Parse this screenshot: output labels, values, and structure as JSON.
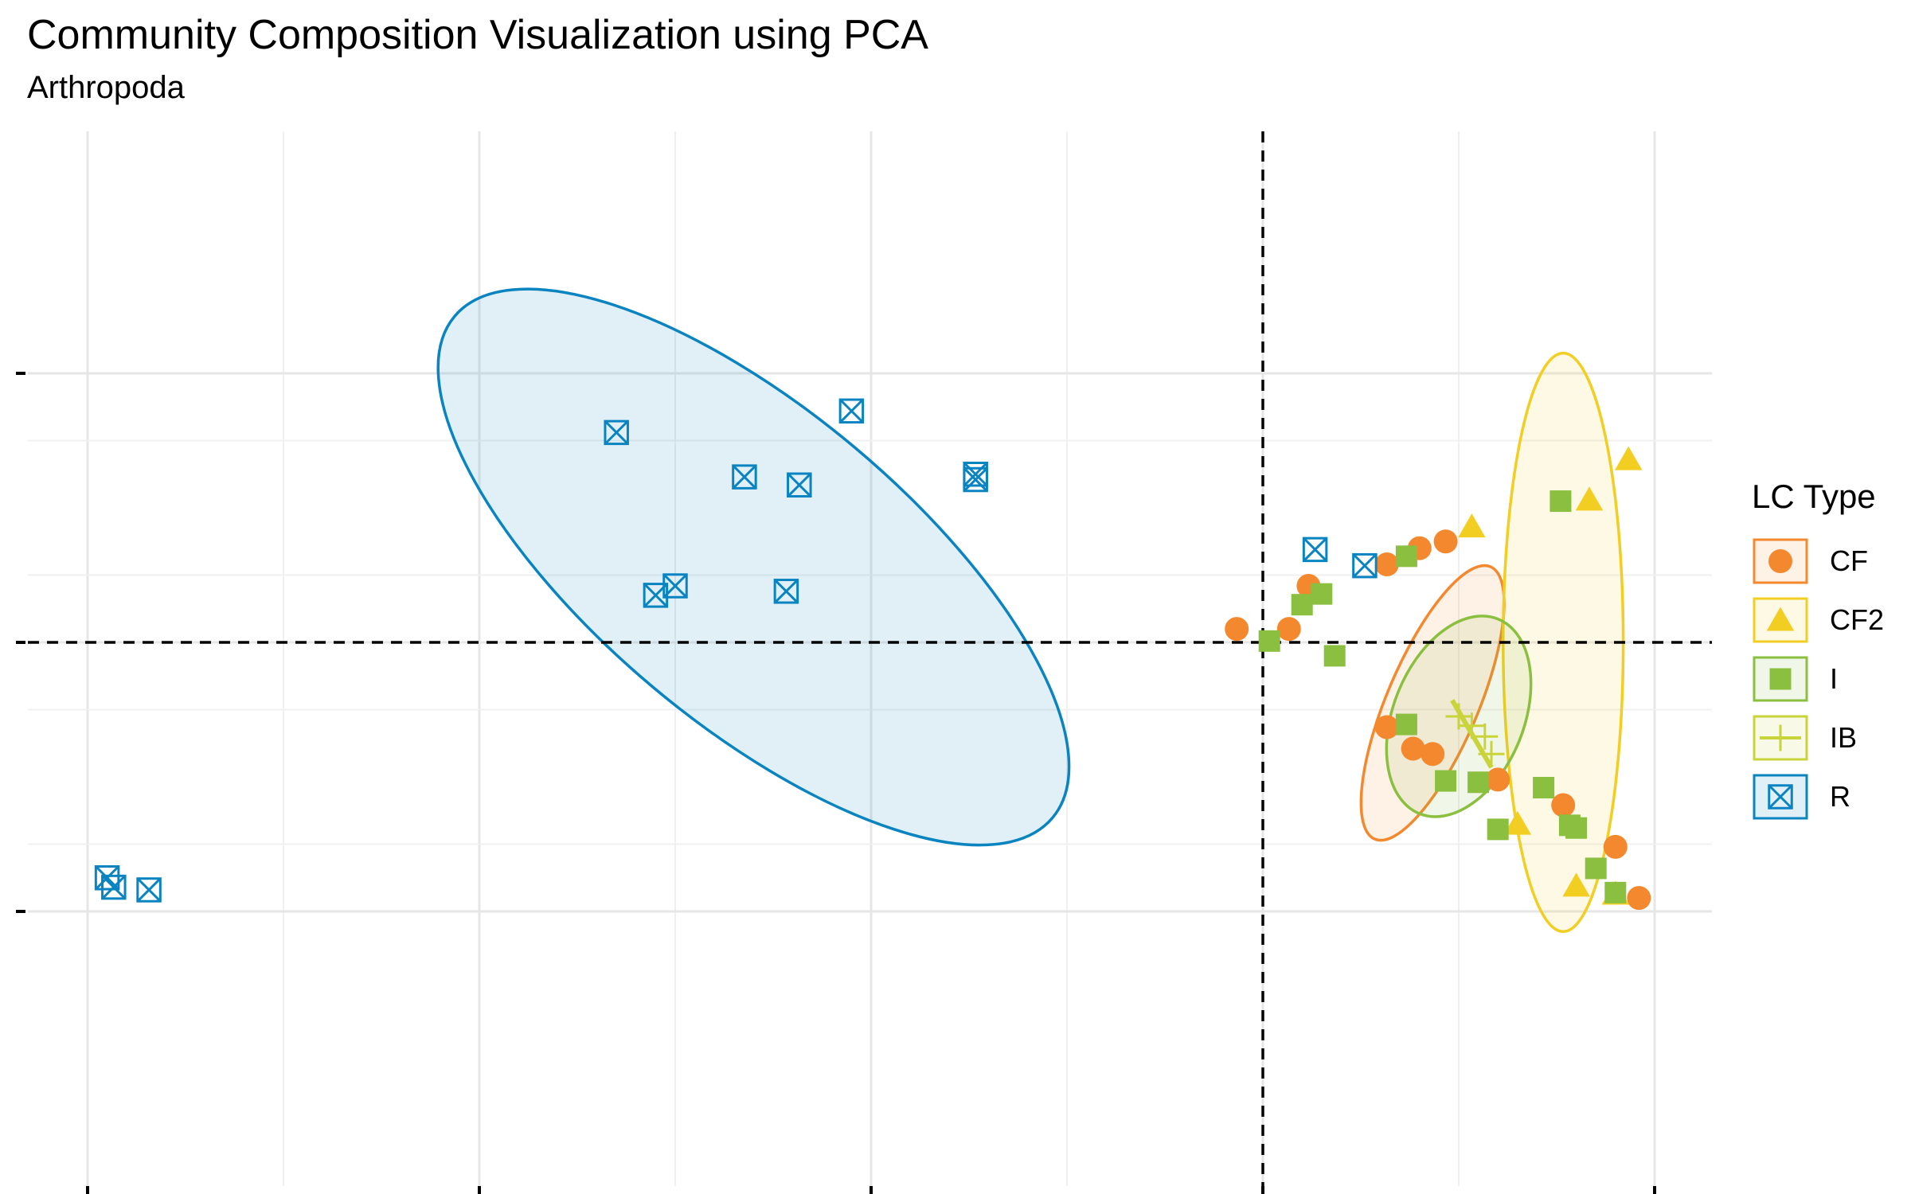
{
  "title": "Community Composition Visualization using PCA",
  "subtitle": "Arthropoda",
  "legend": {
    "title": "LC Type",
    "items": [
      {
        "label": "CF",
        "shape": "circle",
        "color": "#F4882F"
      },
      {
        "label": "CF2",
        "shape": "triangle",
        "color": "#F2CD22"
      },
      {
        "label": "I",
        "shape": "square",
        "color": "#8BBF3F"
      },
      {
        "label": "IB",
        "shape": "plus",
        "color": "#C9D33A"
      },
      {
        "label": "R",
        "shape": "boxx",
        "color": "#0A84C1"
      }
    ]
  },
  "chart_data": {
    "type": "scatter",
    "title": "Community Composition Visualization using PCA",
    "subtitle": "Arthropoda",
    "xlabel": "",
    "ylabel": "",
    "xlim": [
      -0.9,
      0.35
    ],
    "ylim": [
      -0.22,
      0.2
    ],
    "x_ticks": [
      -0.9,
      -0.6,
      -0.3,
      0.0,
      0.3
    ],
    "y_ticks": [
      -0.2,
      0.0,
      0.2
    ],
    "tick_labels_shown": false,
    "reference_lines": {
      "x": 0,
      "y": 0,
      "style": "dashed"
    },
    "grid": true,
    "legend_position": "right",
    "series": [
      {
        "name": "CF",
        "shape": "circle",
        "color": "#F4882F",
        "points": [
          [
            -0.02,
            0.01
          ],
          [
            0.02,
            0.01
          ],
          [
            0.035,
            0.042
          ],
          [
            0.095,
            0.058
          ],
          [
            0.12,
            0.07
          ],
          [
            0.14,
            0.075
          ],
          [
            0.095,
            -0.063
          ],
          [
            0.115,
            -0.079
          ],
          [
            0.13,
            -0.083
          ],
          [
            0.18,
            -0.102
          ],
          [
            0.23,
            -0.121
          ],
          [
            0.27,
            -0.152
          ],
          [
            0.288,
            -0.19
          ]
        ],
        "ellipse": {
          "center": [
            0.13,
            -0.045
          ],
          "semi_axes": [
            0.035,
            0.11
          ],
          "angle_deg": -23
        }
      },
      {
        "name": "CF2",
        "shape": "triangle",
        "color": "#F2CD22",
        "points": [
          [
            0.16,
            0.086
          ],
          [
            0.25,
            0.106
          ],
          [
            0.28,
            0.136
          ],
          [
            0.195,
            -0.135
          ],
          [
            0.24,
            -0.181
          ],
          [
            0.27,
            -0.187
          ]
        ],
        "ellipse": {
          "center": [
            0.23,
            0.0
          ],
          "semi_axes": [
            0.046,
            0.215
          ],
          "angle_deg": 0
        }
      },
      {
        "name": "I",
        "shape": "square",
        "color": "#8BBF3F",
        "points": [
          [
            0.005,
            0.001
          ],
          [
            0.03,
            0.028
          ],
          [
            0.045,
            0.036
          ],
          [
            0.055,
            -0.01
          ],
          [
            0.11,
            0.064
          ],
          [
            0.11,
            -0.061
          ],
          [
            0.14,
            -0.103
          ],
          [
            0.165,
            -0.104
          ],
          [
            0.18,
            -0.139
          ],
          [
            0.215,
            -0.108
          ],
          [
            0.235,
            -0.136
          ],
          [
            0.24,
            -0.138
          ],
          [
            0.255,
            -0.168
          ],
          [
            0.27,
            -0.186
          ],
          [
            0.228,
            0.105
          ]
        ],
        "ellipse": {
          "center": [
            0.15,
            -0.055
          ],
          "semi_axes": [
            0.05,
            0.078
          ],
          "angle_deg": -22
        }
      },
      {
        "name": "IB",
        "shape": "plus",
        "color": "#C9D33A",
        "points": [
          [
            0.15,
            -0.055
          ],
          [
            0.16,
            -0.062
          ],
          [
            0.17,
            -0.07
          ],
          [
            0.175,
            -0.083
          ]
        ],
        "segment": [
          [
            0.145,
            -0.043
          ],
          [
            0.175,
            -0.093
          ]
        ]
      },
      {
        "name": "R",
        "shape": "boxx",
        "color": "#0A84C1",
        "points": [
          [
            -0.495,
            0.156
          ],
          [
            -0.315,
            0.172
          ],
          [
            -0.397,
            0.123
          ],
          [
            -0.355,
            0.117
          ],
          [
            -0.22,
            0.125
          ],
          [
            -0.22,
            0.121
          ],
          [
            -0.465,
            0.035
          ],
          [
            -0.45,
            0.042
          ],
          [
            -0.365,
            0.038
          ],
          [
            0.04,
            0.069
          ],
          [
            0.078,
            0.057
          ],
          [
            -0.885,
            -0.175
          ],
          [
            -0.88,
            -0.182
          ],
          [
            -0.853,
            -0.184
          ]
        ],
        "ellipse": {
          "center": [
            -0.39,
            0.056
          ],
          "semi_axes": [
            0.12,
            0.29
          ],
          "angle_deg": 50
        }
      }
    ]
  }
}
